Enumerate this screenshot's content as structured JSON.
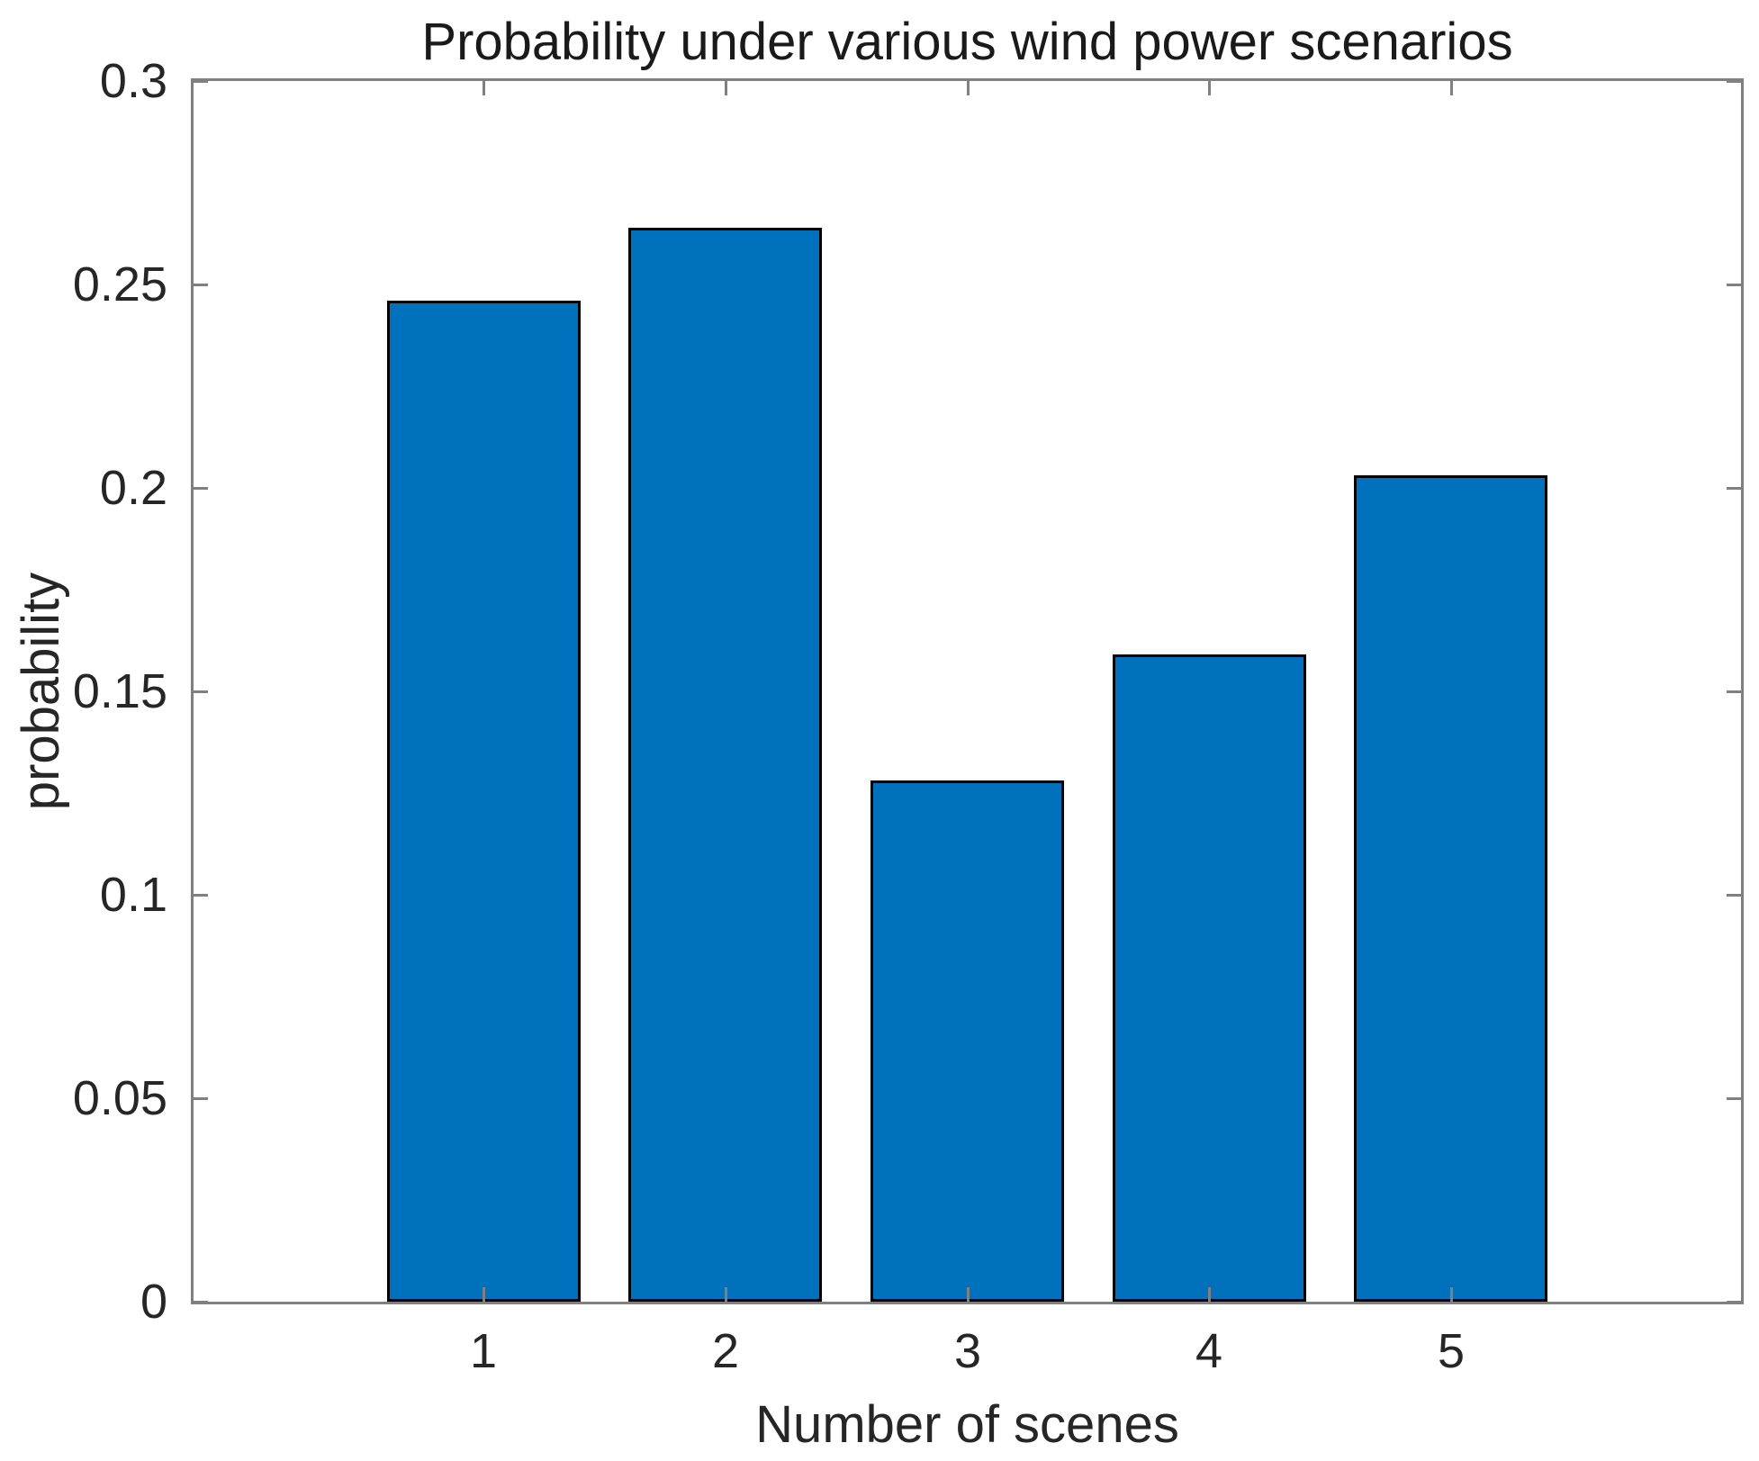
{
  "chart_data": {
    "type": "bar",
    "title": "Probability under various wind power scenarios",
    "xlabel": "Number of scenes",
    "ylabel": "probability",
    "categories": [
      "1",
      "2",
      "3",
      "4",
      "5"
    ],
    "values": [
      0.246,
      0.264,
      0.128,
      0.159,
      0.203
    ],
    "series_name": "probability",
    "xlim": [
      -0.2,
      6.2
    ],
    "ylim": [
      0,
      0.3
    ],
    "yticks": [
      0,
      0.05,
      0.1,
      0.15,
      0.2,
      0.25,
      0.3
    ],
    "ytick_labels": [
      "0",
      "0.05",
      "0.1",
      "0.15",
      "0.2",
      "0.25",
      "0.3"
    ],
    "bar_width_fraction": 0.8,
    "grid": false,
    "legend": null,
    "bar_color": "#0072BD",
    "bar_edge_color": "#000000",
    "axis_color": "#808080",
    "text_color": "#262626",
    "background_color": "#FFFFFF",
    "tick_direction": "in"
  }
}
